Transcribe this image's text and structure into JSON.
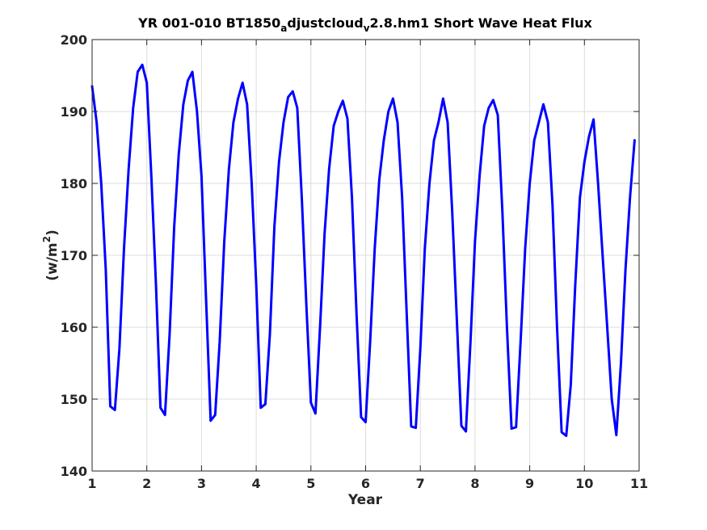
{
  "chart_data": {
    "type": "line",
    "title": {
      "parts": [
        {
          "text": "YR 001-010 BT1850",
          "sub": false
        },
        {
          "text": "a",
          "sub": true
        },
        {
          "text": "djustcloud",
          "sub": false
        },
        {
          "text": "v",
          "sub": true
        },
        {
          "text": "2.8.hm1 Short Wave Heat Flux",
          "sub": false
        }
      ]
    },
    "xlabel": "Year",
    "ylabel": {
      "base": "(w/m",
      "sup": "2",
      "close": ")"
    },
    "xlim": [
      1,
      11
    ],
    "ylim": [
      140,
      200
    ],
    "xticks": [
      1,
      2,
      3,
      4,
      5,
      6,
      7,
      8,
      9,
      10,
      11
    ],
    "yticks": [
      140,
      150,
      160,
      170,
      180,
      190,
      200
    ],
    "grid": true,
    "series": [
      {
        "color": "#0000ff",
        "x": [
          1.0,
          1.083,
          1.167,
          1.25,
          1.333,
          1.417,
          1.5,
          1.583,
          1.667,
          1.75,
          1.833,
          1.917,
          2.0,
          2.083,
          2.167,
          2.25,
          2.333,
          2.417,
          2.5,
          2.583,
          2.667,
          2.75,
          2.833,
          2.917,
          3.0,
          3.083,
          3.167,
          3.25,
          3.333,
          3.417,
          3.5,
          3.583,
          3.667,
          3.75,
          3.833,
          3.917,
          4.0,
          4.083,
          4.167,
          4.25,
          4.333,
          4.417,
          4.5,
          4.583,
          4.667,
          4.75,
          4.833,
          4.917,
          5.0,
          5.083,
          5.167,
          5.25,
          5.333,
          5.417,
          5.5,
          5.583,
          5.667,
          5.75,
          5.833,
          5.917,
          6.0,
          6.083,
          6.167,
          6.25,
          6.333,
          6.417,
          6.5,
          6.583,
          6.667,
          6.75,
          6.833,
          6.917,
          7.0,
          7.083,
          7.167,
          7.25,
          7.333,
          7.417,
          7.5,
          7.583,
          7.667,
          7.75,
          7.833,
          7.917,
          8.0,
          8.083,
          8.167,
          8.25,
          8.333,
          8.417,
          8.5,
          8.583,
          8.667,
          8.75,
          8.833,
          8.917,
          9.0,
          9.083,
          9.167,
          9.25,
          9.333,
          9.417,
          9.5,
          9.583,
          9.667,
          9.75,
          9.833,
          9.917,
          10.0,
          10.083,
          10.167,
          10.25,
          10.333,
          10.417,
          10.5,
          10.583,
          10.667,
          10.75,
          10.833,
          10.917
        ],
        "y": [
          193.5,
          188.5,
          180.0,
          168.0,
          149.0,
          148.5,
          157.0,
          171.0,
          182.0,
          190.5,
          195.5,
          196.5,
          194.0,
          181.0,
          166.0,
          148.8,
          147.8,
          159.0,
          174.0,
          184.0,
          191.0,
          194.3,
          195.5,
          190.0,
          181.0,
          164.0,
          147.0,
          147.8,
          158.0,
          172.0,
          182.0,
          188.5,
          191.8,
          194.0,
          191.0,
          180.0,
          166.0,
          148.8,
          149.3,
          159.0,
          174.0,
          183.0,
          188.5,
          192.0,
          192.8,
          190.5,
          178.0,
          163.0,
          149.5,
          148.0,
          160.0,
          173.0,
          182.0,
          188.0,
          190.0,
          191.5,
          189.0,
          178.0,
          162.0,
          147.5,
          146.8,
          158.0,
          171.0,
          180.5,
          186.0,
          190.0,
          191.8,
          188.5,
          178.0,
          162.0,
          146.2,
          146.0,
          157.0,
          171.0,
          180.0,
          186.0,
          188.5,
          191.8,
          188.5,
          176.0,
          161.0,
          146.3,
          145.5,
          158.0,
          172.0,
          181.0,
          188.0,
          190.5,
          191.6,
          189.5,
          176.0,
          160.0,
          145.9,
          146.1,
          158.0,
          171.0,
          180.0,
          186.0,
          188.5,
          191.0,
          188.5,
          177.0,
          160.0,
          145.4,
          144.9,
          152.0,
          166.0,
          178.0,
          183.0,
          186.5,
          188.9,
          180.0,
          170.0,
          160.0,
          150.0,
          145.0,
          155.0,
          168.0,
          178.0,
          186.0
        ]
      }
    ]
  }
}
